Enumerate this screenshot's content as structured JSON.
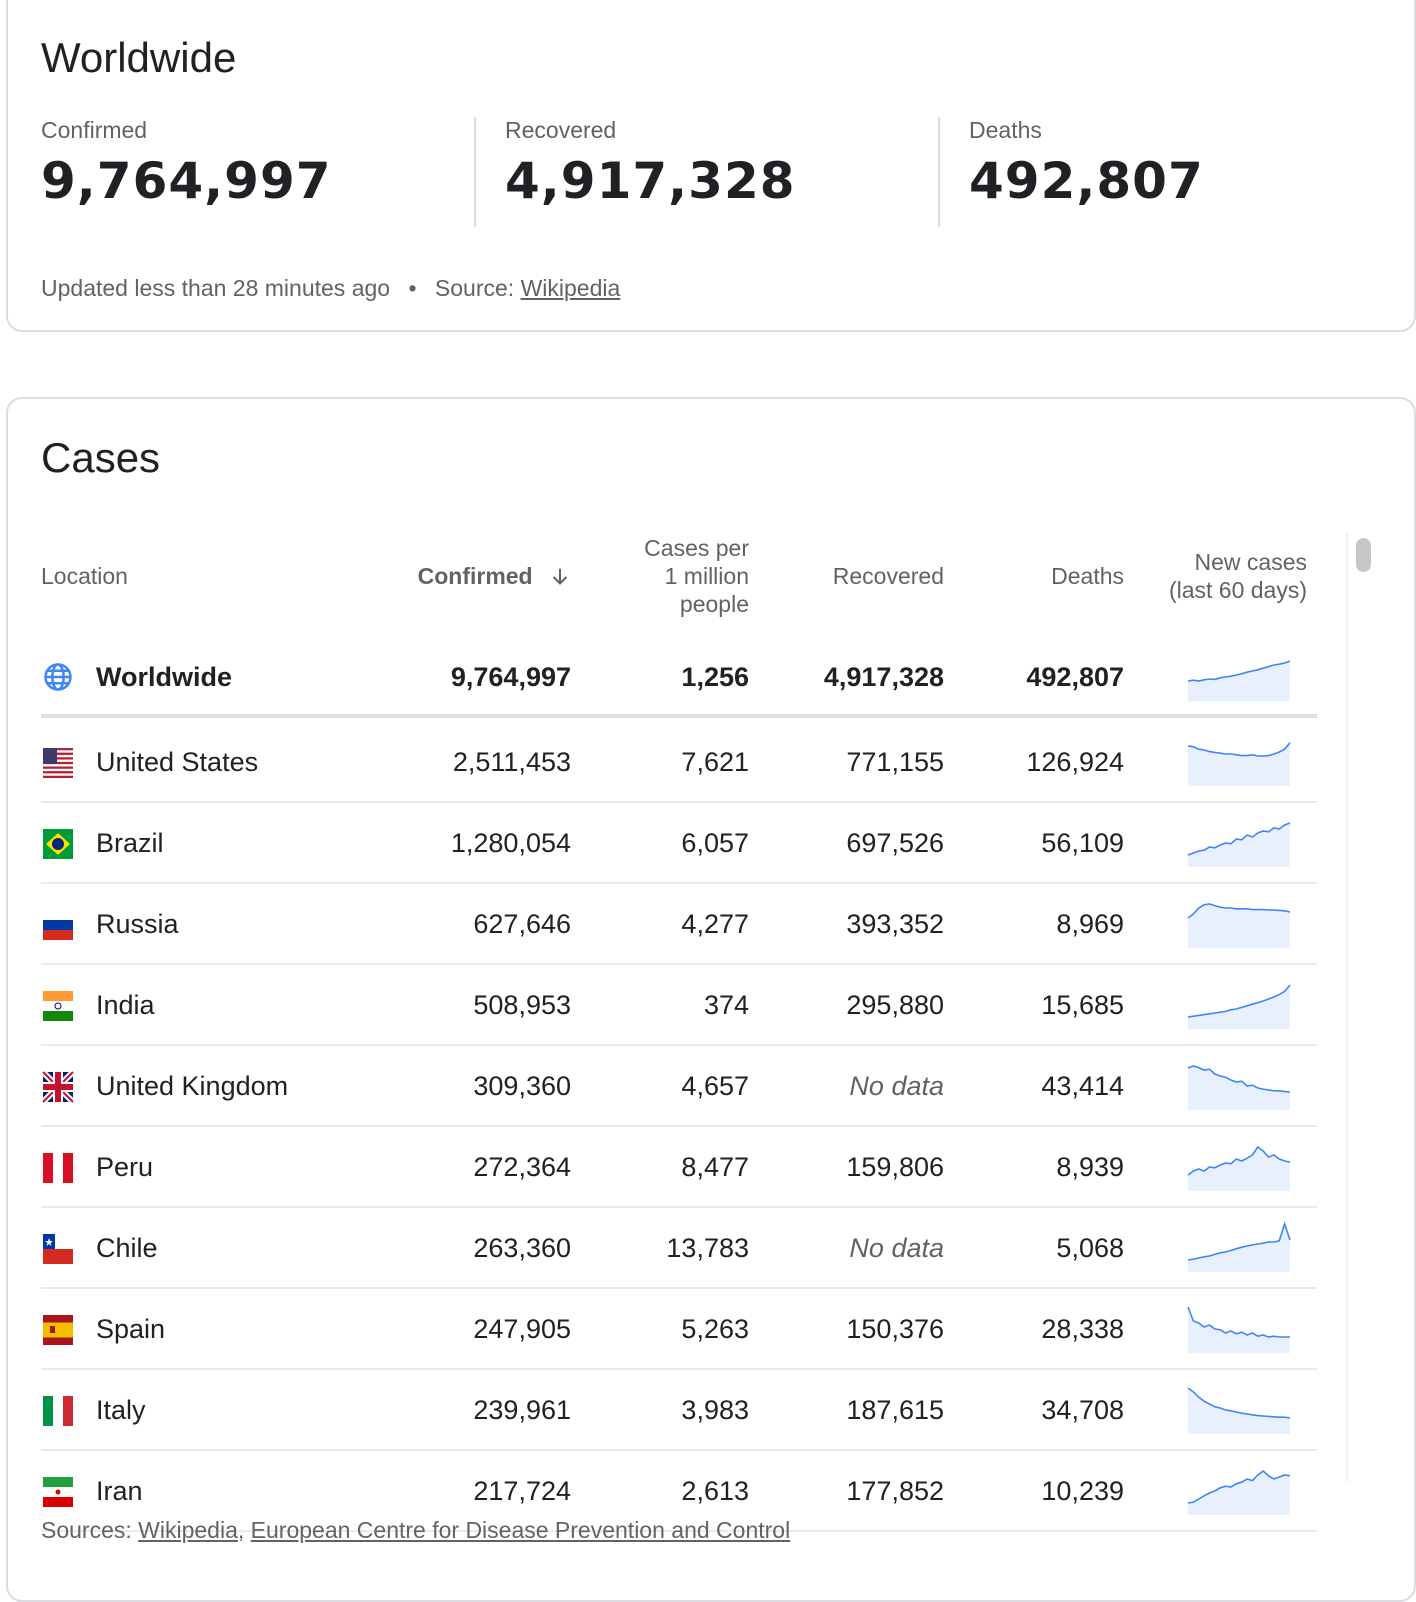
{
  "worldwide": {
    "title": "Worldwide",
    "stats": [
      {
        "label": "Confirmed",
        "value": "9,764,997"
      },
      {
        "label": "Recovered",
        "value": "4,917,328"
      },
      {
        "label": "Deaths",
        "value": "492,807"
      }
    ],
    "updated_text": "Updated less than 28 minutes ago",
    "dot": "•",
    "source_label": "Source:",
    "source_link": "Wikipedia"
  },
  "cases": {
    "title": "Cases",
    "headers": {
      "location": "Location",
      "confirmed": "Confirmed",
      "sort_icon": "arrow-down-icon",
      "per_million_line1": "Cases per",
      "per_million_line2": "1 million",
      "per_million_line3": "people",
      "recovered": "Recovered",
      "deaths": "Deaths",
      "new_cases_line1": "New cases",
      "new_cases_line2": "(last 60 days)"
    },
    "rows": [
      {
        "location": "Worldwide",
        "flag": "globe-icon",
        "confirmed": "9,764,997",
        "per_million": "1,256",
        "recovered": "4,917,328",
        "deaths": "492,807",
        "trend": [
          0.3,
          0.32,
          0.3,
          0.33,
          0.35,
          0.34,
          0.38,
          0.4,
          0.42,
          0.45,
          0.48,
          0.52,
          0.55,
          0.58,
          0.62,
          0.66,
          0.7,
          0.72,
          0.75,
          0.8
        ]
      },
      {
        "location": "United States",
        "flag": "flag-us",
        "confirmed": "2,511,453",
        "per_million": "7,621",
        "recovered": "771,155",
        "deaths": "126,924",
        "trend": [
          0.8,
          0.78,
          0.72,
          0.7,
          0.66,
          0.64,
          0.62,
          0.6,
          0.6,
          0.58,
          0.56,
          0.56,
          0.58,
          0.55,
          0.55,
          0.56,
          0.6,
          0.65,
          0.72,
          0.88
        ]
      },
      {
        "location": "Brazil",
        "flag": "flag-br",
        "confirmed": "1,280,054",
        "per_million": "6,057",
        "recovered": "697,526",
        "deaths": "56,109",
        "trend": [
          0.1,
          0.15,
          0.2,
          0.22,
          0.3,
          0.28,
          0.35,
          0.4,
          0.38,
          0.5,
          0.48,
          0.6,
          0.55,
          0.65,
          0.7,
          0.68,
          0.78,
          0.75,
          0.85,
          0.9
        ]
      },
      {
        "location": "Russia",
        "flag": "flag-ru",
        "confirmed": "627,646",
        "per_million": "4,277",
        "recovered": "393,352",
        "deaths": "8,969",
        "trend": [
          0.55,
          0.65,
          0.8,
          0.88,
          0.9,
          0.86,
          0.82,
          0.8,
          0.8,
          0.78,
          0.78,
          0.78,
          0.76,
          0.76,
          0.76,
          0.75,
          0.75,
          0.74,
          0.73,
          0.7
        ]
      },
      {
        "location": "India",
        "flag": "flag-in",
        "confirmed": "508,953",
        "per_million": "374",
        "recovered": "295,880",
        "deaths": "15,685",
        "trend": [
          0.1,
          0.12,
          0.14,
          0.16,
          0.18,
          0.2,
          0.22,
          0.24,
          0.28,
          0.3,
          0.34,
          0.38,
          0.42,
          0.46,
          0.5,
          0.55,
          0.6,
          0.66,
          0.74,
          0.9
        ]
      },
      {
        "location": "United Kingdom",
        "flag": "flag-uk",
        "confirmed": "309,360",
        "per_million": "4,657",
        "recovered": "No data",
        "deaths": "43,414",
        "trend": [
          0.85,
          0.9,
          0.86,
          0.8,
          0.82,
          0.7,
          0.65,
          0.62,
          0.55,
          0.5,
          0.52,
          0.4,
          0.42,
          0.35,
          0.32,
          0.3,
          0.28,
          0.28,
          0.26,
          0.25
        ]
      },
      {
        "location": "Peru",
        "flag": "flag-pe",
        "confirmed": "272,364",
        "per_million": "8,477",
        "recovered": "159,806",
        "deaths": "8,939",
        "trend": [
          0.2,
          0.3,
          0.35,
          0.3,
          0.4,
          0.38,
          0.45,
          0.5,
          0.48,
          0.6,
          0.55,
          0.62,
          0.7,
          0.9,
          0.8,
          0.65,
          0.7,
          0.6,
          0.55,
          0.52
        ]
      },
      {
        "location": "Chile",
        "flag": "flag-cl",
        "confirmed": "263,360",
        "per_million": "13,783",
        "recovered": "No data",
        "deaths": "5,068",
        "trend": [
          0.1,
          0.12,
          0.15,
          0.18,
          0.2,
          0.24,
          0.28,
          0.3,
          0.34,
          0.38,
          0.42,
          0.45,
          0.48,
          0.5,
          0.52,
          0.55,
          0.55,
          0.58,
          1.0,
          0.6
        ]
      },
      {
        "location": "Spain",
        "flag": "flag-es",
        "confirmed": "247,905",
        "per_million": "5,263",
        "recovered": "150,376",
        "deaths": "28,338",
        "trend": [
          0.95,
          0.6,
          0.55,
          0.45,
          0.5,
          0.4,
          0.38,
          0.3,
          0.35,
          0.28,
          0.32,
          0.25,
          0.3,
          0.22,
          0.25,
          0.2,
          0.22,
          0.2,
          0.2,
          0.2
        ]
      },
      {
        "location": "Italy",
        "flag": "flag-it",
        "confirmed": "239,961",
        "per_million": "3,983",
        "recovered": "187,615",
        "deaths": "34,708",
        "trend": [
          0.95,
          0.85,
          0.72,
          0.62,
          0.55,
          0.48,
          0.45,
          0.4,
          0.38,
          0.35,
          0.32,
          0.3,
          0.28,
          0.26,
          0.25,
          0.24,
          0.23,
          0.22,
          0.22,
          0.2
        ]
      },
      {
        "location": "Iran",
        "flag": "flag-ir",
        "confirmed": "217,724",
        "per_million": "2,613",
        "recovered": "177,852",
        "deaths": "10,239",
        "trend": [
          0.1,
          0.12,
          0.2,
          0.28,
          0.35,
          0.4,
          0.48,
          0.52,
          0.5,
          0.58,
          0.62,
          0.7,
          0.66,
          0.8,
          0.9,
          0.78,
          0.7,
          0.75,
          0.8,
          0.78
        ]
      }
    ],
    "sources_label": "Sources:",
    "sources_links": [
      "Wikipedia",
      "European Centre for Disease Prevention and Control"
    ],
    "sources_sep": ","
  },
  "colors": {
    "spark_line": "#4285f4",
    "spark_fill": "#e8f0fe",
    "text_primary": "#202124",
    "text_secondary": "#5f6368"
  }
}
